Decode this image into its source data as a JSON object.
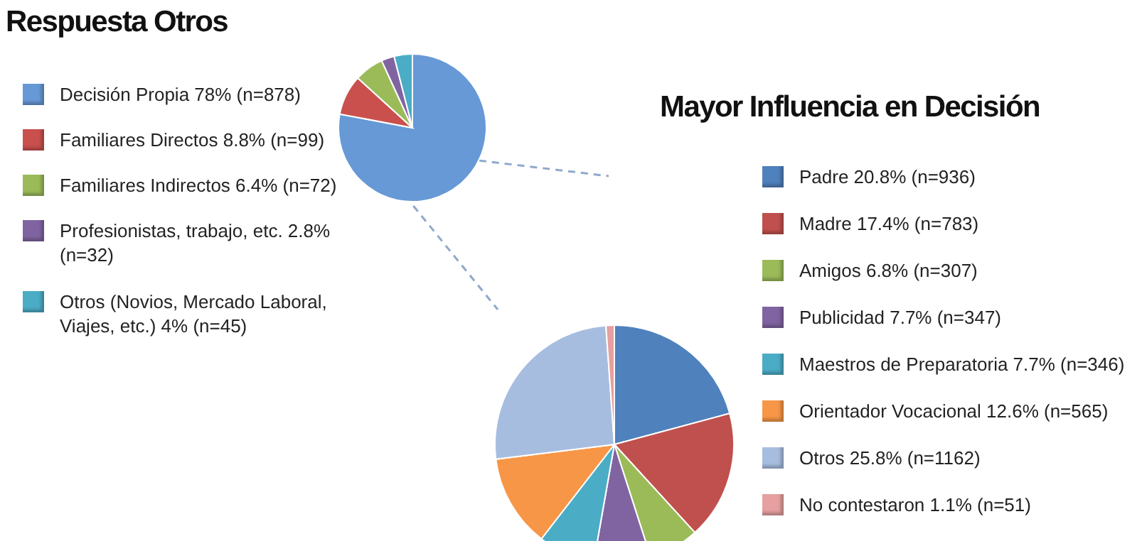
{
  "chart_data": [
    {
      "type": "pie",
      "title": "Respuesta Otros",
      "legend": "left",
      "categories": [
        "Decisión Propia 78% (n=878)",
        "Familiares Directos 8.8% (n=99)",
        "Familiares Indirectos 6.4% (n=72)",
        "Profesionistas, trabajo, etc. 2.8% (n=32)",
        "Otros (Novios, Mercado Laboral, Viajes, etc.) 4% (n=45)"
      ],
      "values": [
        878,
        99,
        72,
        32,
        45
      ],
      "colors": [
        "#6699d6",
        "#c9504d",
        "#9bbb59",
        "#8064a2",
        "#4bacc6"
      ]
    },
    {
      "type": "pie",
      "title": "Mayor Influencia en Decisión",
      "legend": "right",
      "categories": [
        "Padre 20.8% (n=936)",
        "Madre 17.4% (n=783)",
        "Amigos 6.8% (n=307)",
        "Publicidad 7.7% (n=347)",
        "Maestros de Preparatoria 7.7% (n=346)",
        "Orientador Vocacional 12.6% (n=565)",
        "Otros 25.8% (n=1162)",
        "No contestaron 1.1% (n=51)"
      ],
      "values": [
        936,
        783,
        307,
        347,
        346,
        565,
        1162,
        51
      ],
      "colors": [
        "#4f81bd",
        "#c0504d",
        "#9bbb59",
        "#8064a2",
        "#4bacc6",
        "#f79646",
        "#a7bde0",
        "#e6a0a0"
      ]
    }
  ]
}
